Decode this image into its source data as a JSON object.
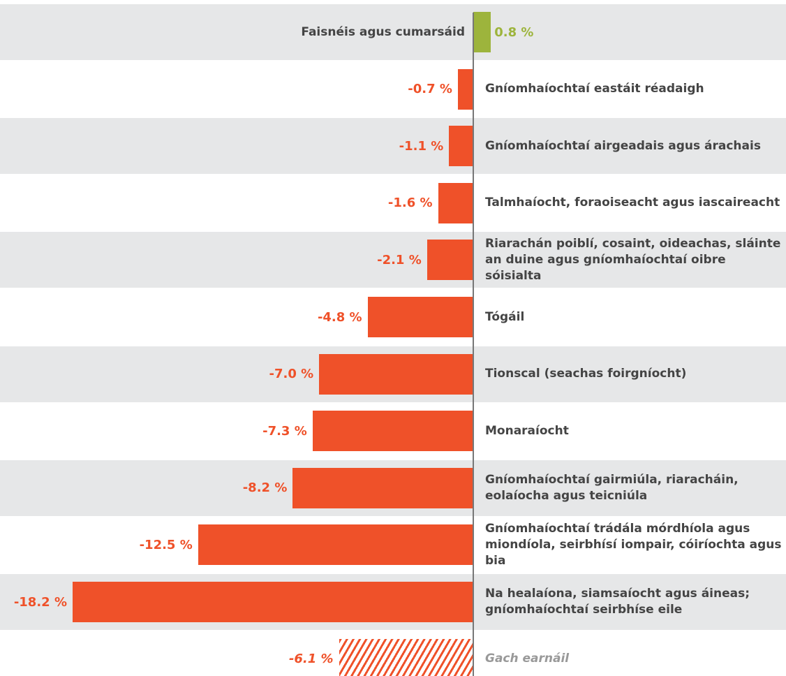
{
  "chart_data": {
    "type": "bar",
    "orientation": "horizontal",
    "categories": [
      "Faisnéis agus cumarsáid",
      "Gníomhaíochtaí eastáit réadaigh",
      "Gníomhaíochtaí airgeadais agus árachais",
      "Talmhaíocht, foraoiseacht agus iascaireacht",
      "Riarachán poiblí, cosaint, oideachas, sláinte an duine agus gníomhaíochtaí oibre sóisialta",
      "Tógáil",
      "Tionscal (seachas foirgníocht)",
      "Monaraíocht",
      "Gníomhaíochtaí gairmiúla, riaracháin, eolaíocha agus teicniúla",
      "Gníomhaíochtaí trádála mórdhíola agus miondíola, seirbhísí iompair, cóiríochta agus bia",
      "Na healaíona, siamsaíocht agus áineas; gníomhaíochtaí seirbhíse eile"
    ],
    "values": [
      0.8,
      -0.7,
      -1.1,
      -1.6,
      -2.1,
      -4.8,
      -7.0,
      -7.3,
      -8.2,
      -12.5,
      -18.2
    ],
    "value_labels": [
      "0.8 %",
      "-0.7 %",
      "-1.1 %",
      "-1.6 %",
      "-2.1 %",
      "-4.8 %",
      "-7.0 %",
      "-7.3 %",
      "-8.2 %",
      "-12.5 %",
      "-18.2 %"
    ],
    "positive_color": "#9db43c",
    "negative_color": "#ef5129",
    "total": {
      "category": "Gach earnáil",
      "value": -6.1,
      "value_label": "-6.1 %",
      "color": "#ef5129",
      "pattern": "hatched"
    }
  }
}
